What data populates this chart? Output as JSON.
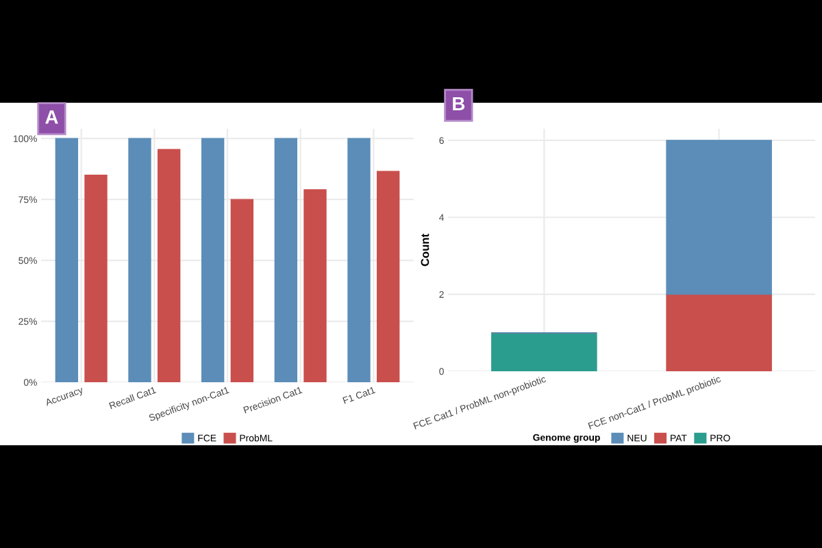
{
  "chart_data": [
    {
      "type": "bar",
      "annotations": [
        "A"
      ],
      "categories": [
        "Accuracy",
        "Recall Cat1",
        "Specificity non-Cat1",
        "Precision Cat1",
        "F1 Cat1"
      ],
      "series": [
        {
          "name": "FCE",
          "color": "#5b8db8",
          "values": [
            100,
            100,
            100,
            100,
            100
          ]
        },
        {
          "name": "ProbML",
          "color": "#c94f4d",
          "values": [
            85,
            95.5,
            75,
            79,
            86.5
          ]
        }
      ],
      "ylim": [
        0,
        104
      ],
      "yticks": [
        {
          "value": 0,
          "label": "0%"
        },
        {
          "value": 25,
          "label": "25%"
        },
        {
          "value": 50,
          "label": "50%"
        },
        {
          "value": 75,
          "label": "75%"
        },
        {
          "value": 100,
          "label": "100%"
        }
      ],
      "grid": true,
      "legend": "bottom"
    },
    {
      "type": "bar",
      "annotations": [
        "B"
      ],
      "stacked": true,
      "ylabel": "Count",
      "legend_title": "Genome group",
      "categories": [
        "FCE Cat1 / ProbML non-probiotic",
        "FCE non-Cat1 / ProbML probiotic"
      ],
      "series": [
        {
          "name": "PRO",
          "color": "#2a9d8f",
          "values": [
            1,
            0
          ]
        },
        {
          "name": "PAT",
          "color": "#c94f4d",
          "values": [
            0,
            2
          ]
        },
        {
          "name": "NEU",
          "color": "#5b8db8",
          "values": [
            0,
            4
          ]
        }
      ],
      "ylim": [
        0,
        6.3
      ],
      "yticks": [
        0,
        2,
        4,
        6
      ],
      "grid": true,
      "legend": "bottom"
    }
  ]
}
